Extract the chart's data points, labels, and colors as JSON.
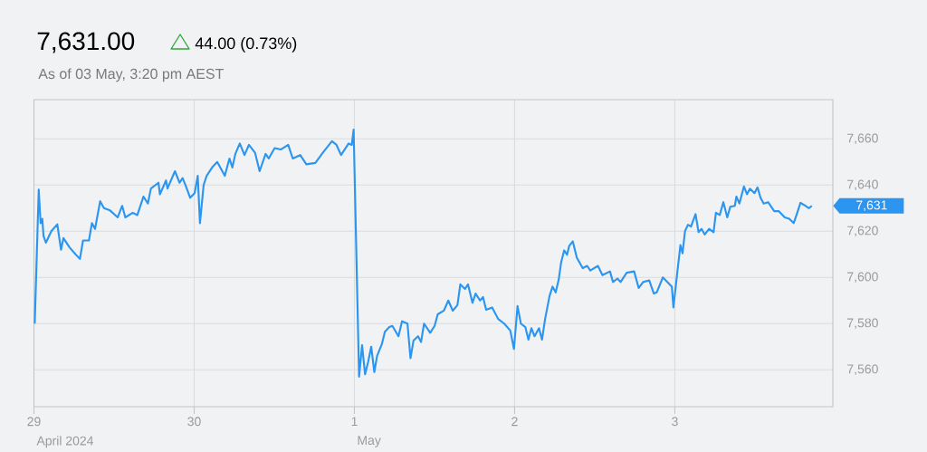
{
  "chart_data": {
    "type": "line",
    "title": "7,631.00",
    "subtitle": "As of 03 May, 3:20 pm AEST",
    "annotations": [
      "44.00 (0.73%)",
      "7,631",
      "April 2024",
      "May"
    ],
    "x": [
      "2024-04-29T00:07",
      "2024-04-29T00:43",
      "2024-04-29T01:00",
      "2024-04-29T01:15",
      "2024-04-29T01:26",
      "2024-04-29T01:47",
      "2024-04-29T02:36",
      "2024-04-29T03:30",
      "2024-04-29T04:03",
      "2024-04-29T04:25",
      "2024-04-29T05:20",
      "2024-04-29T06:14",
      "2024-04-29T06:53",
      "2024-04-29T07:21",
      "2024-04-29T08:14",
      "2024-04-29T08:41",
      "2024-04-29T09:09",
      "2024-04-29T09:55",
      "2024-04-29T10:29",
      "2024-04-29T11:24",
      "2024-04-29T12:33",
      "2024-04-29T13:13",
      "2024-04-29T13:41",
      "2024-04-29T14:48",
      "2024-04-29T15:29",
      "2024-04-29T16:24",
      "2024-04-29T17:04",
      "2024-04-29T17:31",
      "2024-04-29T18:39",
      "2024-04-29T18:52",
      "2024-04-29T19:47",
      "2024-04-29T20:00",
      "2024-04-29T21:07",
      "2024-04-29T21:49",
      "2024-04-29T22:16",
      "2024-04-29T22:42",
      "2024-04-29T23:24",
      "2024-04-30T00:04",
      "2024-04-30T00:32",
      "2024-04-30T00:52",
      "2024-04-30T01:25",
      "2024-04-30T01:52",
      "2024-04-30T02:47",
      "2024-04-30T03:27",
      "2024-04-30T04:35",
      "2024-04-30T05:17",
      "2024-04-30T05:43",
      "2024-04-30T06:10",
      "2024-04-30T06:50",
      "2024-04-30T07:32",
      "2024-04-30T08:12",
      "2024-04-30T09:07",
      "2024-04-30T09:48",
      "2024-04-30T10:42",
      "2024-04-30T11:10",
      "2024-04-30T12:03",
      "2024-04-30T12:58",
      "2024-04-30T14:05",
      "2024-04-30T14:46",
      "2024-04-30T15:53",
      "2024-04-30T16:48",
      "2024-04-30T18:09",
      "2024-04-30T19:16",
      "2024-04-30T20:38",
      "2024-04-30T21:19",
      "2024-04-30T22:00",
      "2024-04-30T23:08",
      "2024-04-30T23:36",
      "2024-04-30T23:53",
      "2024-05-01T00:42",
      "2024-05-01T01:09",
      "2024-05-01T01:36",
      "2024-05-01T02:04",
      "2024-05-01T02:31",
      "2024-05-01T02:59",
      "2024-05-01T03:24",
      "2024-05-01T04:06",
      "2024-05-01T04:34",
      "2024-05-01T05:14",
      "2024-05-01T05:41",
      "2024-05-01T06:36",
      "2024-05-01T07:08",
      "2024-05-01T07:57",
      "2024-05-01T08:24",
      "2024-05-01T08:51",
      "2024-05-01T09:32",
      "2024-05-01T09:59",
      "2024-05-01T10:26",
      "2024-05-01T11:21",
      "2024-05-01T12:01",
      "2024-05-01T12:29",
      "2024-05-01T13:24",
      "2024-05-01T14:04",
      "2024-05-01T14:44",
      "2024-05-01T15:26",
      "2024-05-01T15:52",
      "2024-05-01T16:34",
      "2024-05-01T17:01",
      "2024-05-01T17:41",
      "2024-05-01T18:09",
      "2024-05-01T18:49",
      "2024-05-01T19:16",
      "2024-05-01T19:44",
      "2024-05-01T20:38",
      "2024-05-01T21:32",
      "2024-05-01T22:26",
      "2024-05-01T23:21",
      "2024-05-01T23:54",
      "2024-05-02T00:26",
      "2024-05-02T00:56",
      "2024-05-02T01:36",
      "2024-05-02T02:04",
      "2024-05-02T02:31",
      "2024-05-02T02:59",
      "2024-05-02T03:39",
      "2024-05-02T04:06",
      "2024-05-02T04:34",
      "2024-05-02T05:14",
      "2024-05-02T05:41",
      "2024-05-02T06:09",
      "2024-05-02T06:36",
      "2024-05-02T06:58",
      "2024-05-02T07:25",
      "2024-05-02T07:51",
      "2024-05-02T08:11",
      "2024-05-02T08:43",
      "2024-05-02T09:19",
      "2024-05-02T10:12",
      "2024-05-02T10:52",
      "2024-05-02T11:20",
      "2024-05-02T12:29",
      "2024-05-02T13:09",
      "2024-05-02T14:17",
      "2024-05-02T14:44",
      "2024-05-02T15:24",
      "2024-05-02T15:52",
      "2024-05-02T16:47",
      "2024-05-02T17:54",
      "2024-05-02T18:35",
      "2024-05-02T19:15",
      "2024-05-02T20:10",
      "2024-05-02T20:51",
      "2024-05-02T21:17",
      "2024-05-02T22:12",
      "2024-05-02T22:52",
      "2024-05-02T23:33",
      "2024-05-02T23:47",
      "2024-05-03T00:23",
      "2024-05-03T00:50",
      "2024-05-03T01:09",
      "2024-05-03T01:31",
      "2024-05-03T01:58",
      "2024-05-03T02:25",
      "2024-05-03T03:06",
      "2024-05-03T03:33",
      "2024-05-03T04:00",
      "2024-05-03T04:28",
      "2024-05-03T05:08",
      "2024-05-03T05:48",
      "2024-05-03T06:09",
      "2024-05-03T06:43",
      "2024-05-03T07:16",
      "2024-05-03T07:51",
      "2024-05-03T08:18",
      "2024-05-03T08:59",
      "2024-05-03T09:13",
      "2024-05-03T09:40",
      "2024-05-03T10:21",
      "2024-05-03T10:48",
      "2024-05-03T11:15",
      "2024-05-03T11:56",
      "2024-05-03T12:23",
      "2024-05-03T12:50",
      "2024-05-03T13:18",
      "2024-05-03T13:58",
      "2024-05-03T14:53",
      "2024-05-03T15:33",
      "2024-05-03T16:28",
      "2024-05-03T17:08",
      "2024-05-03T17:48",
      "2024-05-03T18:16",
      "2024-05-03T18:49",
      "2024-05-03T19:24",
      "2024-05-03T20:04",
      "2024-05-03T20:31"
    ],
    "series": [
      {
        "color": "#2b95ef",
        "values": [
          7580,
          7638,
          7623.5,
          7625.4,
          7618,
          7615,
          7620,
          7623,
          7612,
          7617,
          7613,
          7610,
          7608,
          7616,
          7616,
          7623.5,
          7621,
          7633,
          7630,
          7629,
          7626,
          7631,
          7626,
          7628,
          7627,
          7635,
          7632,
          7638.5,
          7641,
          7636,
          7642,
          7638.5,
          7646,
          7641,
          7643,
          7640,
          7634.5,
          7636.5,
          7644,
          7623.5,
          7640,
          7644,
          7648,
          7650,
          7644,
          7651.5,
          7647.6,
          7653.5,
          7658,
          7653,
          7657.4,
          7654,
          7646,
          7653.5,
          7651.5,
          7656,
          7655.4,
          7657.4,
          7651.5,
          7653,
          7649,
          7649.6,
          7654,
          7659,
          7657.4,
          7653,
          7658,
          7657.4,
          7664,
          7557,
          7570.6,
          7558,
          7563.5,
          7570,
          7559,
          7566,
          7571,
          7576.5,
          7578.5,
          7579,
          7574.5,
          7581,
          7580,
          7565,
          7572.6,
          7574.5,
          7572,
          7580,
          7576,
          7579,
          7584,
          7585.6,
          7590,
          7585.6,
          7588,
          7597,
          7595,
          7597,
          7589,
          7593,
          7590,
          7591.5,
          7586,
          7587,
          7582,
          7580,
          7577,
          7569,
          7587.6,
          7580,
          7578.5,
          7573,
          7578,
          7574.5,
          7578,
          7573,
          7582,
          7592,
          7596,
          7593.5,
          7599,
          7606.5,
          7611.7,
          7609.8,
          7613.7,
          7615.6,
          7608.5,
          7604,
          7605,
          7603,
          7605,
          7601,
          7602.6,
          7598,
          7599.5,
          7598,
          7602,
          7602.6,
          7595.4,
          7598,
          7598.7,
          7593,
          7593.5,
          7600,
          7598,
          7596,
          7587,
          7602.6,
          7614,
          7610.4,
          7620,
          7622.8,
          7622,
          7627.4,
          7619.6,
          7621,
          7618.6,
          7621,
          7619.6,
          7628,
          7627,
          7632.6,
          7626,
          7630.6,
          7631,
          7635,
          7632,
          7639.4,
          7636,
          7638.4,
          7636.5,
          7639,
          7634.5,
          7632,
          7632.6,
          7628.7,
          7628.7,
          7626,
          7625.4,
          7623.5,
          7627.4,
          7632.3,
          7631.3,
          7630,
          7631
        ]
      }
    ],
    "xlim": [
      "2024-04-29",
      "2024-05-03T23:40"
    ],
    "ylim": [
      7544,
      7677
    ],
    "xticks": [
      {
        "value": "2024-04-29",
        "label": "29"
      },
      {
        "value": "2024-04-30",
        "label": "30"
      },
      {
        "value": "2024-05-01",
        "label": "1"
      },
      {
        "value": "2024-05-02",
        "label": "2"
      },
      {
        "value": "2024-05-03",
        "label": "3"
      }
    ],
    "yticks": [
      {
        "value": 7560,
        "label": "7,560"
      },
      {
        "value": 7580,
        "label": "7,580"
      },
      {
        "value": 7600,
        "label": "7,600"
      },
      {
        "value": 7620,
        "label": "7,620"
      },
      {
        "value": 7640,
        "label": "7,640"
      },
      {
        "value": 7660,
        "label": "7,660"
      }
    ],
    "grid": true
  }
}
